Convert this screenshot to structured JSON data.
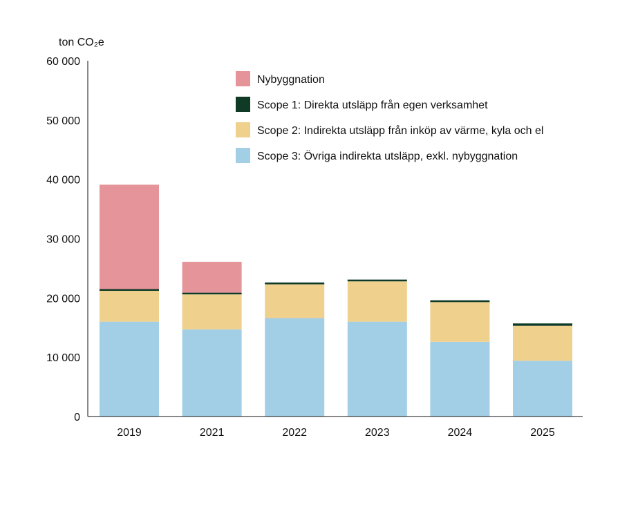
{
  "chart_data": {
    "type": "bar",
    "stacked": true,
    "unit_label": "ton CO₂e",
    "categories": [
      "2019",
      "2021",
      "2022",
      "2023",
      "2024",
      "2025"
    ],
    "series": [
      {
        "name": "Scope 3: Övriga indirekta utsläpp, exkl. nybyggnation",
        "color": "#a2cfe6",
        "values": [
          16000,
          14700,
          16600,
          16000,
          12600,
          9400
        ]
      },
      {
        "name": "Scope 2: Indirekta utsläpp från inköp av värme, kyla och el",
        "color": "#f0d08d",
        "values": [
          5200,
          5900,
          5700,
          6800,
          6700,
          5900
        ]
      },
      {
        "name": "Scope 1: Direkta utsläpp från egen verksamhet",
        "color": "#0e3a26",
        "values": [
          300,
          300,
          300,
          300,
          300,
          400
        ]
      },
      {
        "name": "Nybyggnation",
        "color": "#e59499",
        "values": [
          17600,
          5200,
          0,
          0,
          0,
          0
        ]
      }
    ],
    "legend": [
      {
        "name": "Nybyggnation",
        "color": "#e59499"
      },
      {
        "name": "Scope 1: Direkta utsläpp från egen verksamhet",
        "color": "#0e3a26"
      },
      {
        "name": "Scope 2: Indirekta utsläpp från inköp av värme, kyla och el",
        "color": "#f0d08d"
      },
      {
        "name": "Scope 3: Övriga indirekta utsläpp, exkl. nybyggnation",
        "color": "#a2cfe6"
      }
    ],
    "legend_position": "top-right",
    "ylim": [
      0,
      60000
    ],
    "yticks": [
      0,
      10000,
      20000,
      30000,
      40000,
      50000,
      60000
    ],
    "ytick_labels": [
      "0",
      "10 000",
      "20 000",
      "30 000",
      "40 000",
      "50 000",
      "60 000"
    ],
    "grid": false
  }
}
